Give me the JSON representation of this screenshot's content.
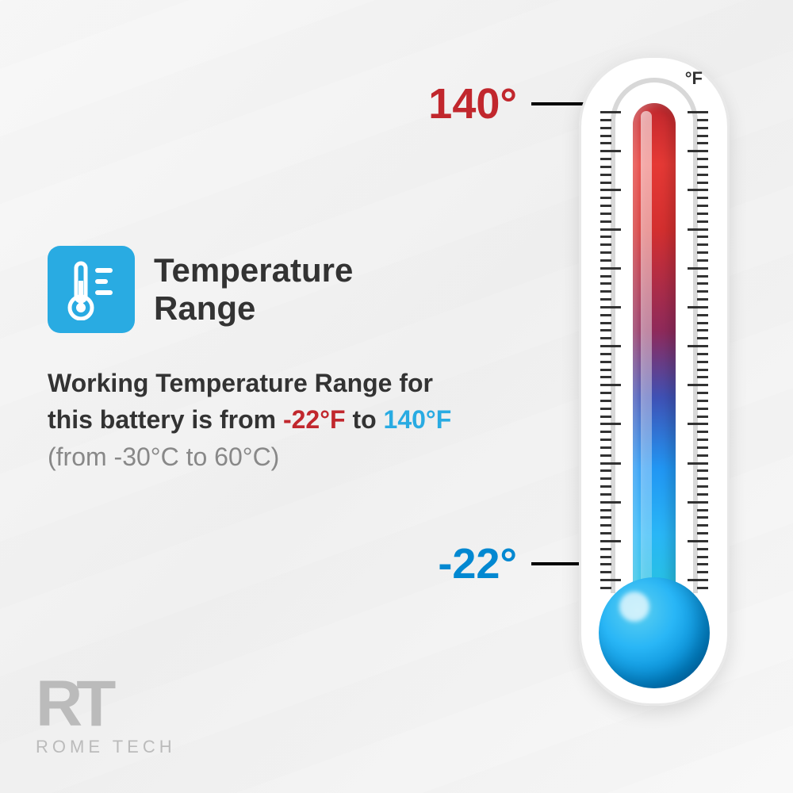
{
  "title": "Temperature\nRange",
  "description": {
    "prefix": "Working Temperature Range for this battery is from ",
    "low_f": "-22°F",
    "mid": " to ",
    "high_f": "140°F",
    "celsius": "(from -30°C to 60°C)"
  },
  "thermometer": {
    "unit": "°F",
    "high_label": "140°",
    "low_label": "-22°",
    "gradient_colors": [
      "#c1272d",
      "#e53935",
      "#8e2a5b",
      "#3f51b5",
      "#29b6f6",
      "#26c6da"
    ],
    "bulb_color": "#29b6f6",
    "tick_count": 62,
    "long_tick_every": 5
  },
  "colors": {
    "icon_bg": "#29abe2",
    "low_text": "#c1272d",
    "high_text": "#29abe2",
    "marker_high": "#c1272d",
    "marker_low": "#0288d1"
  },
  "logo": {
    "mark": "RT",
    "text": "ROME TECH"
  }
}
